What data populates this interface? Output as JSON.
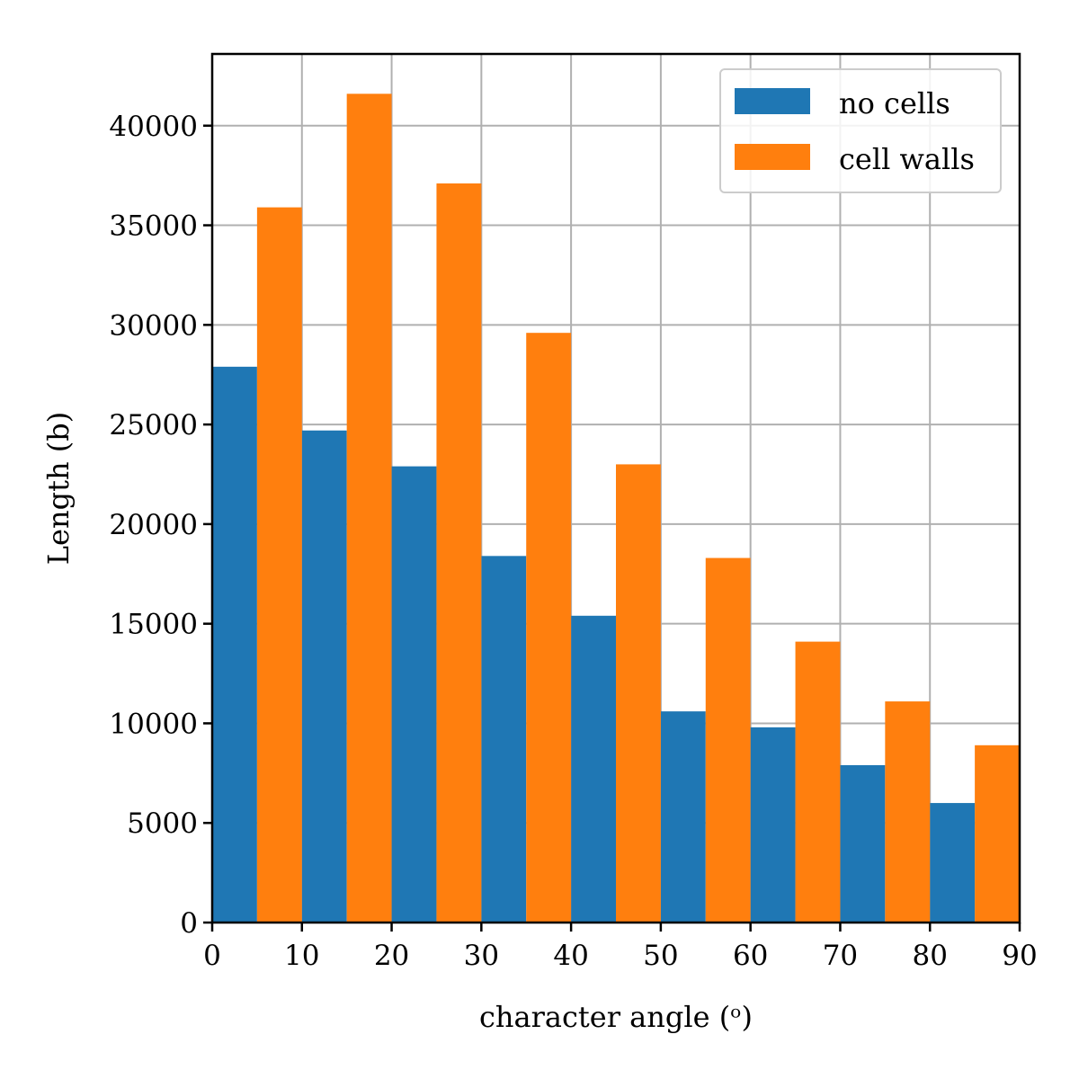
{
  "chart_data": {
    "type": "bar",
    "title": "",
    "xlabel": "character angle (ᵒ)",
    "ylabel": "Length (b)",
    "bin_edges": [
      0,
      10,
      20,
      30,
      40,
      50,
      60,
      70,
      80,
      90
    ],
    "xlim": [
      0,
      90
    ],
    "ylim": [
      0,
      43600
    ],
    "xticks": [
      0,
      10,
      20,
      30,
      40,
      50,
      60,
      70,
      80,
      90
    ],
    "yticks": [
      0,
      5000,
      10000,
      15000,
      20000,
      25000,
      30000,
      35000,
      40000
    ],
    "grid": true,
    "legend_position": "top-right",
    "series": [
      {
        "name": "no cells",
        "color": "#1f77b4",
        "values": [
          27900,
          24700,
          22900,
          18400,
          15400,
          10600,
          9800,
          7900,
          6000
        ]
      },
      {
        "name": "cell walls",
        "color": "#ff7f0e",
        "values": [
          35900,
          41600,
          37100,
          29600,
          23000,
          18300,
          14100,
          11100,
          8900
        ]
      }
    ]
  }
}
